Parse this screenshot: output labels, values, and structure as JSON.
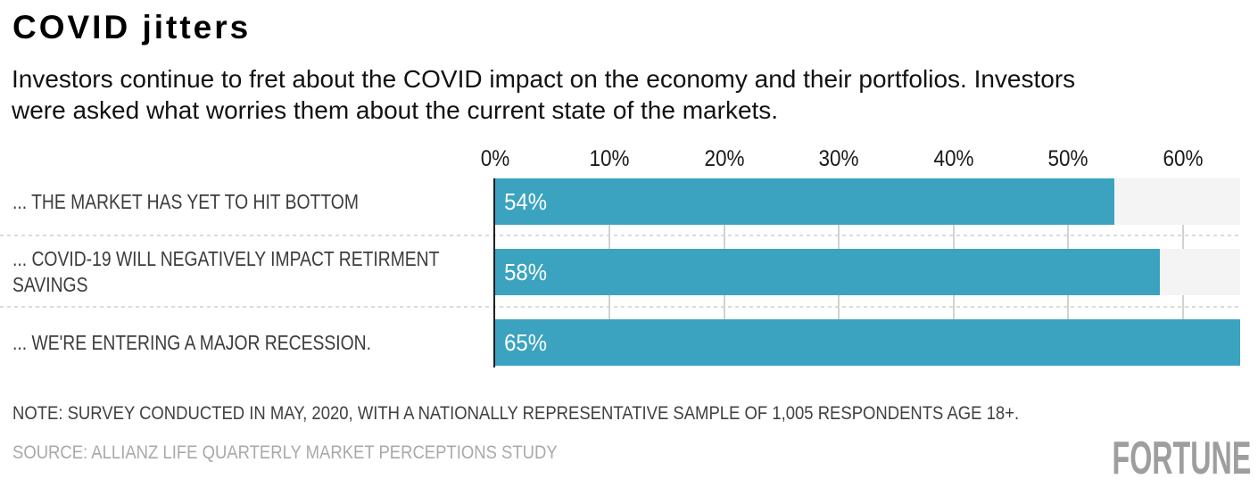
{
  "header": {
    "title": "COVID jitters",
    "subtitle_lines": [
      "Investors continue to fret about the COVID impact on the economy and their portfolios. Investors",
      "were asked what worries them about the current state of the markets."
    ]
  },
  "chart_data": {
    "type": "bar",
    "orientation": "horizontal",
    "title": "COVID jitters",
    "categories": [
      "... THE MARKET HAS YET TO HIT BOTTOM",
      "... COVID-19 WILL NEGATIVELY IMPACT RETIRMENT SAVINGS",
      "... WE'RE ENTERING A MAJOR RECESSION."
    ],
    "values": [
      54,
      58,
      65
    ],
    "value_labels": [
      "54%",
      "58%",
      "65%"
    ],
    "x_ticks": [
      "0%",
      "10%",
      "20%",
      "30%",
      "40%",
      "50%",
      "60%"
    ],
    "x_tick_values": [
      0,
      10,
      20,
      30,
      40,
      50,
      60
    ],
    "xlim": [
      0,
      65
    ],
    "grid": true,
    "legend": false,
    "colors": {
      "bar": "#3ba3c0",
      "track": "#f4f4f4",
      "gridline": "#d2d2d2",
      "axis_line": "#1f1f1f",
      "separator": "#dcdcdc",
      "value_label": "#ffffff"
    }
  },
  "footer": {
    "note": "NOTE: SURVEY CONDUCTED IN MAY, 2020, WITH A NATIONALLY REPRESENTATIVE SAMPLE OF 1,005 RESPONDENTS AGE 18+.",
    "source": "SOURCE: ALLIANZ LIFE QUARTERLY MARKET PERCEPTIONS STUDY",
    "brand": "FORTUNE"
  }
}
